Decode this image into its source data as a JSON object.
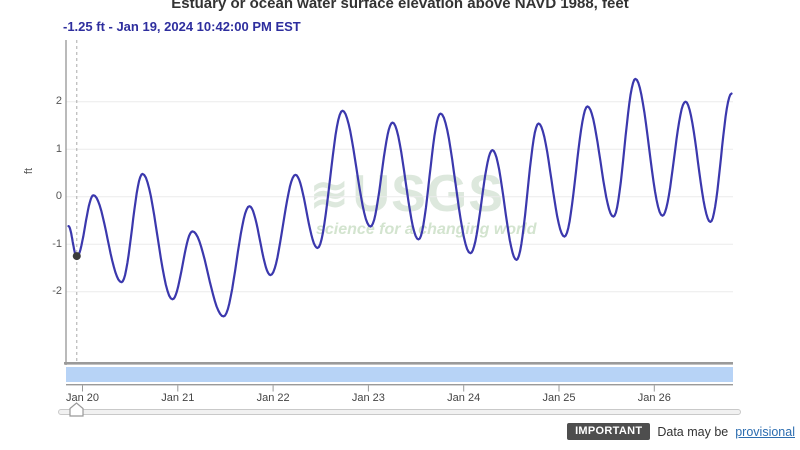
{
  "header": {
    "title": "Estuary or ocean water surface elevation above NAVD 1988, feet",
    "tooltip": "-1.25 ft - Jan 19, 2024 10:42:00 PM EST"
  },
  "chart_data": {
    "type": "line",
    "title": "Estuary or ocean water surface elevation above NAVD 1988, feet",
    "xlabel": "",
    "ylabel": "ft",
    "y_axis": {
      "ticks": [
        2,
        1,
        0,
        -1,
        -2
      ],
      "ylim": [
        -3.5,
        3.3
      ]
    },
    "x_axis": {
      "ticks": [
        "Jan 20",
        "Jan 21",
        "Jan 22",
        "Jan 23",
        "Jan 24",
        "Jan 25",
        "Jan 26"
      ],
      "units": "days",
      "range_days": [
        -0.18,
        6.83
      ]
    },
    "grid": "horizontal",
    "legend": "none",
    "series": [
      {
        "name": "Water surface elevation above NAVD 1988 (ft)",
        "color": "#3b38ad",
        "points_t_days_after_jan20": [
          [
            -0.147,
            -0.62
          ],
          [
            -0.06,
            -1.26
          ],
          [
            0.115,
            0.03
          ],
          [
            0.41,
            -1.8
          ],
          [
            0.63,
            0.48
          ],
          [
            0.944,
            -2.16
          ],
          [
            1.154,
            -0.73
          ],
          [
            1.48,
            -2.52
          ],
          [
            1.752,
            -0.2
          ],
          [
            1.973,
            -1.65
          ],
          [
            2.235,
            0.46
          ],
          [
            2.466,
            -1.08
          ],
          [
            2.728,
            1.81
          ],
          [
            3.022,
            -0.63
          ],
          [
            3.253,
            1.56
          ],
          [
            3.526,
            -0.9
          ],
          [
            3.757,
            1.75
          ],
          [
            4.071,
            -1.19
          ],
          [
            4.302,
            0.98
          ],
          [
            4.554,
            -1.33
          ],
          [
            4.785,
            1.54
          ],
          [
            5.057,
            -0.84
          ],
          [
            5.299,
            1.9
          ],
          [
            5.571,
            -0.42
          ],
          [
            5.802,
            2.48
          ],
          [
            6.086,
            -0.4
          ],
          [
            6.327,
            2.0
          ],
          [
            6.589,
            -0.53
          ],
          [
            6.81,
            2.17
          ]
        ]
      }
    ],
    "marker": {
      "t": -0.06,
      "v": -1.25,
      "label": "-1.25 ft - Jan 19, 2024 10:42:00 PM EST"
    },
    "watermark": {
      "wave": "≋",
      "logo": "USGS",
      "tagline": "science for a changing world"
    },
    "colors": {
      "line": "#3b38ad",
      "band": "#b7d3f6",
      "grid": "#ececec",
      "axis": "#999999",
      "marker": "#3a3a3a",
      "cursor": "#aaaaaa"
    }
  },
  "brush": {
    "band_color": "#b7d3f6"
  },
  "footer": {
    "badge": "IMPORTANT",
    "prefix": "Data may be",
    "link_text": "provisional"
  }
}
